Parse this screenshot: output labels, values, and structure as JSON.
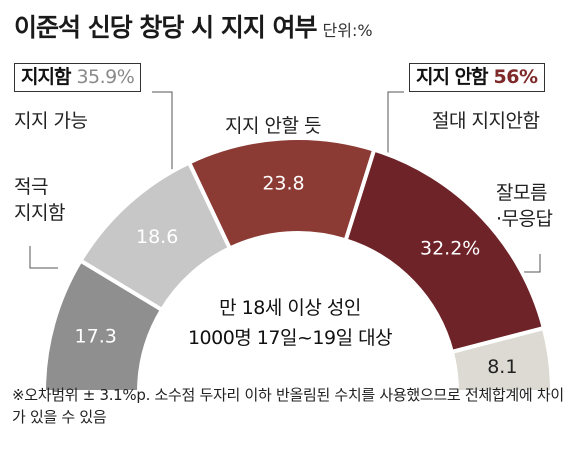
{
  "chart_data": {
    "type": "pie",
    "title": "이준석 신당 창당 시 지지 여부",
    "unit_label": "단위:%",
    "categories": [
      "적극 지지함",
      "지지 가능",
      "지지 안할 듯",
      "절대 지지안함",
      "잘모름·무응답"
    ],
    "values": [
      17.3,
      18.6,
      23.8,
      32.2,
      8.1
    ],
    "value_labels": [
      "17.3",
      "18.6",
      "23.8",
      "32.2%",
      "8.1"
    ],
    "colors": [
      "#8f8f8f",
      "#c7c7c7",
      "#8c3a34",
      "#6e2329",
      "#dcdad2"
    ],
    "group_labels": {
      "support": {
        "label": "지지함",
        "value": "35.9%"
      },
      "nonsupport": {
        "label": "지지 안함",
        "value": "56%"
      }
    },
    "center_note": [
      "만 18세 이상 성인",
      "1000명 17일~19일 대상"
    ],
    "footnote": "※오차범위 ± 3.1%p. 소수점 두자리 이하 반올림된 수치를 사용했으므로 전체합계에 차이가 있을 수 있음"
  },
  "labels": {
    "cat_active_line1": "적극",
    "cat_active_line2": "지지함",
    "cat_possible": "지지 가능",
    "cat_unlikely": "지지 안할 듯",
    "cat_never": "절대 지지안함",
    "cat_unknown_line1": "잘모름",
    "cat_unknown_line2": "·무응답"
  }
}
